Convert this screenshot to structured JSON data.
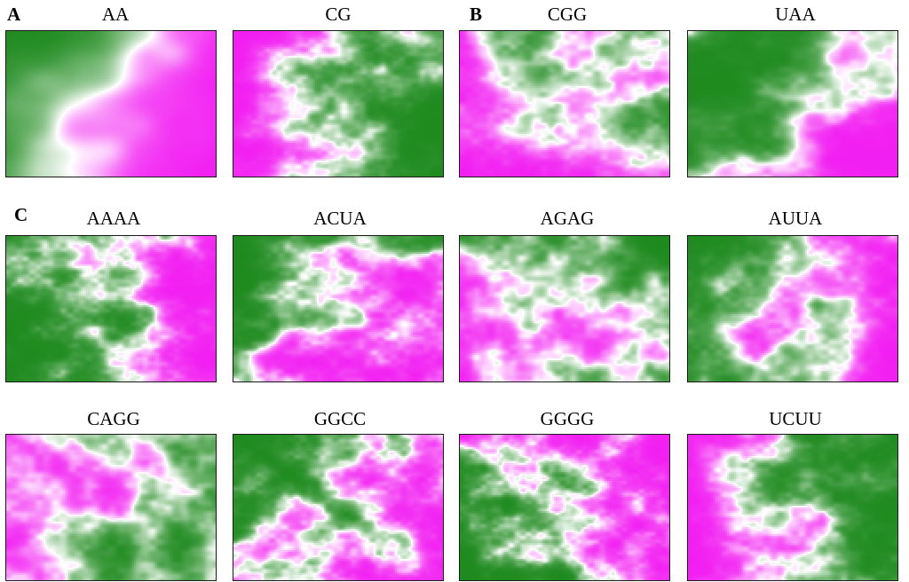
{
  "panel_labels": [
    "A",
    "B",
    "C"
  ],
  "maps": [
    {
      "title": "AA"
    },
    {
      "title": "CG"
    },
    {
      "title": "CGG"
    },
    {
      "title": "UAA"
    },
    {
      "title": "AAAA"
    },
    {
      "title": "ACUA"
    },
    {
      "title": "AGAG"
    },
    {
      "title": "AUUA"
    },
    {
      "title": "CAGG"
    },
    {
      "title": "GGCC"
    },
    {
      "title": "GGGG"
    },
    {
      "title": "UCUU"
    }
  ],
  "colors": {
    "green": "#1e8a1e",
    "white": "#ffffff",
    "magenta": "#f21ef2"
  }
}
